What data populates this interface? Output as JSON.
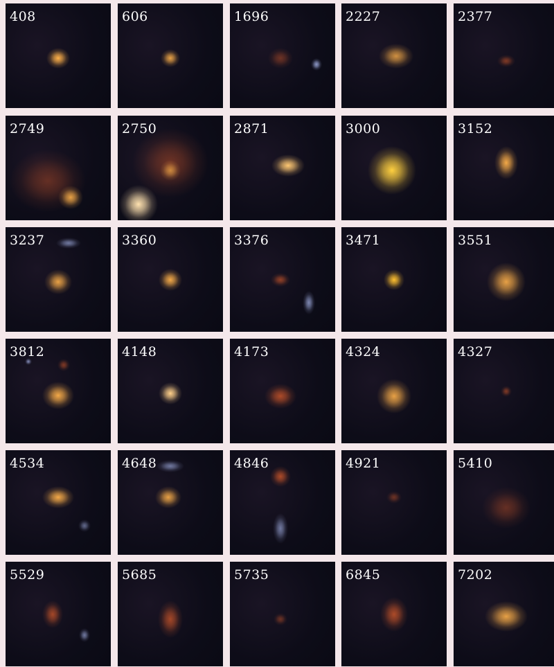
{
  "tiles": [
    {
      "label": "408"
    },
    {
      "label": "606"
    },
    {
      "label": "1696"
    },
    {
      "label": "2227"
    },
    {
      "label": "2377"
    },
    {
      "label": "2749"
    },
    {
      "label": "2750"
    },
    {
      "label": "2871"
    },
    {
      "label": "3000"
    },
    {
      "label": "3152"
    },
    {
      "label": "3237"
    },
    {
      "label": "3360"
    },
    {
      "label": "3376"
    },
    {
      "label": "3471"
    },
    {
      "label": "3551"
    },
    {
      "label": "3812"
    },
    {
      "label": "4148"
    },
    {
      "label": "4173"
    },
    {
      "label": "4324"
    },
    {
      "label": "4327"
    },
    {
      "label": "4534"
    },
    {
      "label": "4648"
    },
    {
      "label": "4846"
    },
    {
      "label": "4921"
    },
    {
      "label": "5410"
    },
    {
      "label": "5529"
    },
    {
      "label": "5685"
    },
    {
      "label": "5735"
    },
    {
      "label": "6845"
    },
    {
      "label": "7202"
    }
  ]
}
